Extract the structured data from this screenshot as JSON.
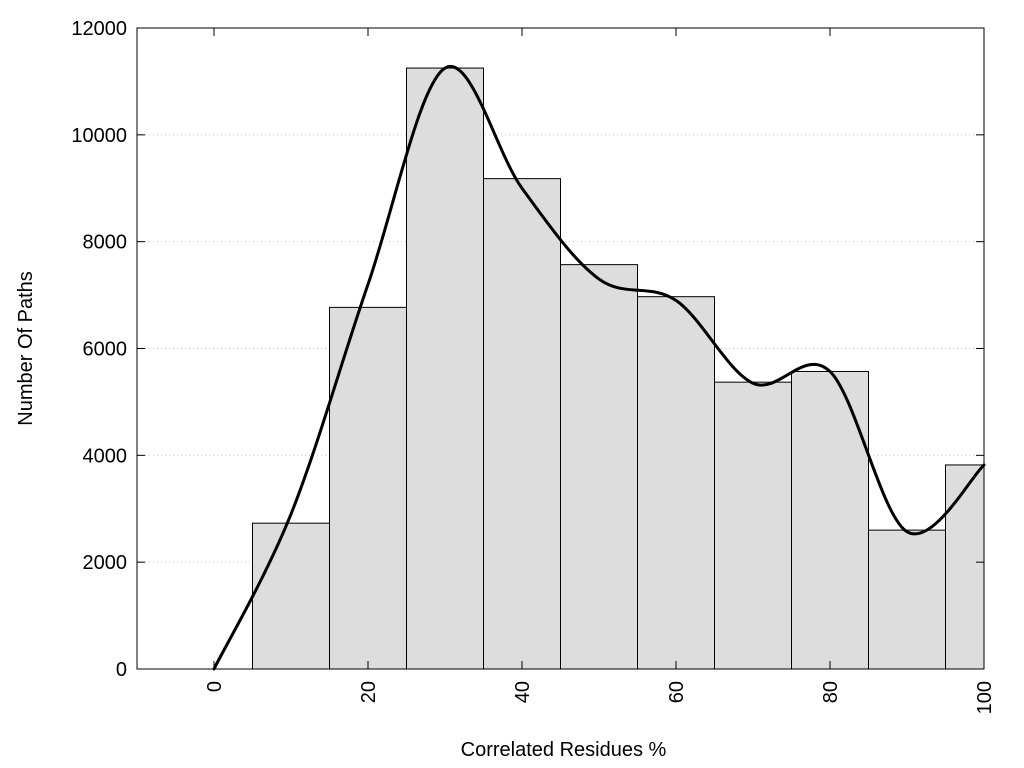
{
  "chart_data": {
    "type": "bar",
    "title": "",
    "xlabel": "Correlated Residues %",
    "ylabel": "Number Of Paths",
    "xlim": [
      -10,
      100
    ],
    "ylim": [
      0,
      12000
    ],
    "grid": true,
    "bar_color": "#dddddd",
    "bar_edge_color": "#000000",
    "line_color": "#000000",
    "x_ticks": [
      0,
      20,
      40,
      60,
      80,
      100
    ],
    "y_ticks": [
      0,
      2000,
      4000,
      6000,
      8000,
      10000,
      12000
    ],
    "bins": [
      {
        "x0": 5,
        "x1": 15,
        "value": 2730
      },
      {
        "x0": 15,
        "x1": 25,
        "value": 6770
      },
      {
        "x0": 25,
        "x1": 35,
        "value": 11250
      },
      {
        "x0": 35,
        "x1": 45,
        "value": 9180
      },
      {
        "x0": 45,
        "x1": 55,
        "value": 7570
      },
      {
        "x0": 55,
        "x1": 65,
        "value": 6970
      },
      {
        "x0": 65,
        "x1": 75,
        "value": 5370
      },
      {
        "x0": 75,
        "x1": 85,
        "value": 5570
      },
      {
        "x0": 85,
        "x1": 95,
        "value": 2600
      },
      {
        "x0": 95,
        "x1": 100,
        "value": 3820
      }
    ],
    "curve": {
      "x": [
        0,
        10,
        20,
        30,
        40,
        50,
        60,
        70,
        80,
        90,
        100
      ],
      "y": [
        0,
        2900,
        7200,
        11250,
        9000,
        7300,
        6900,
        5350,
        5570,
        2570,
        3820
      ]
    }
  }
}
